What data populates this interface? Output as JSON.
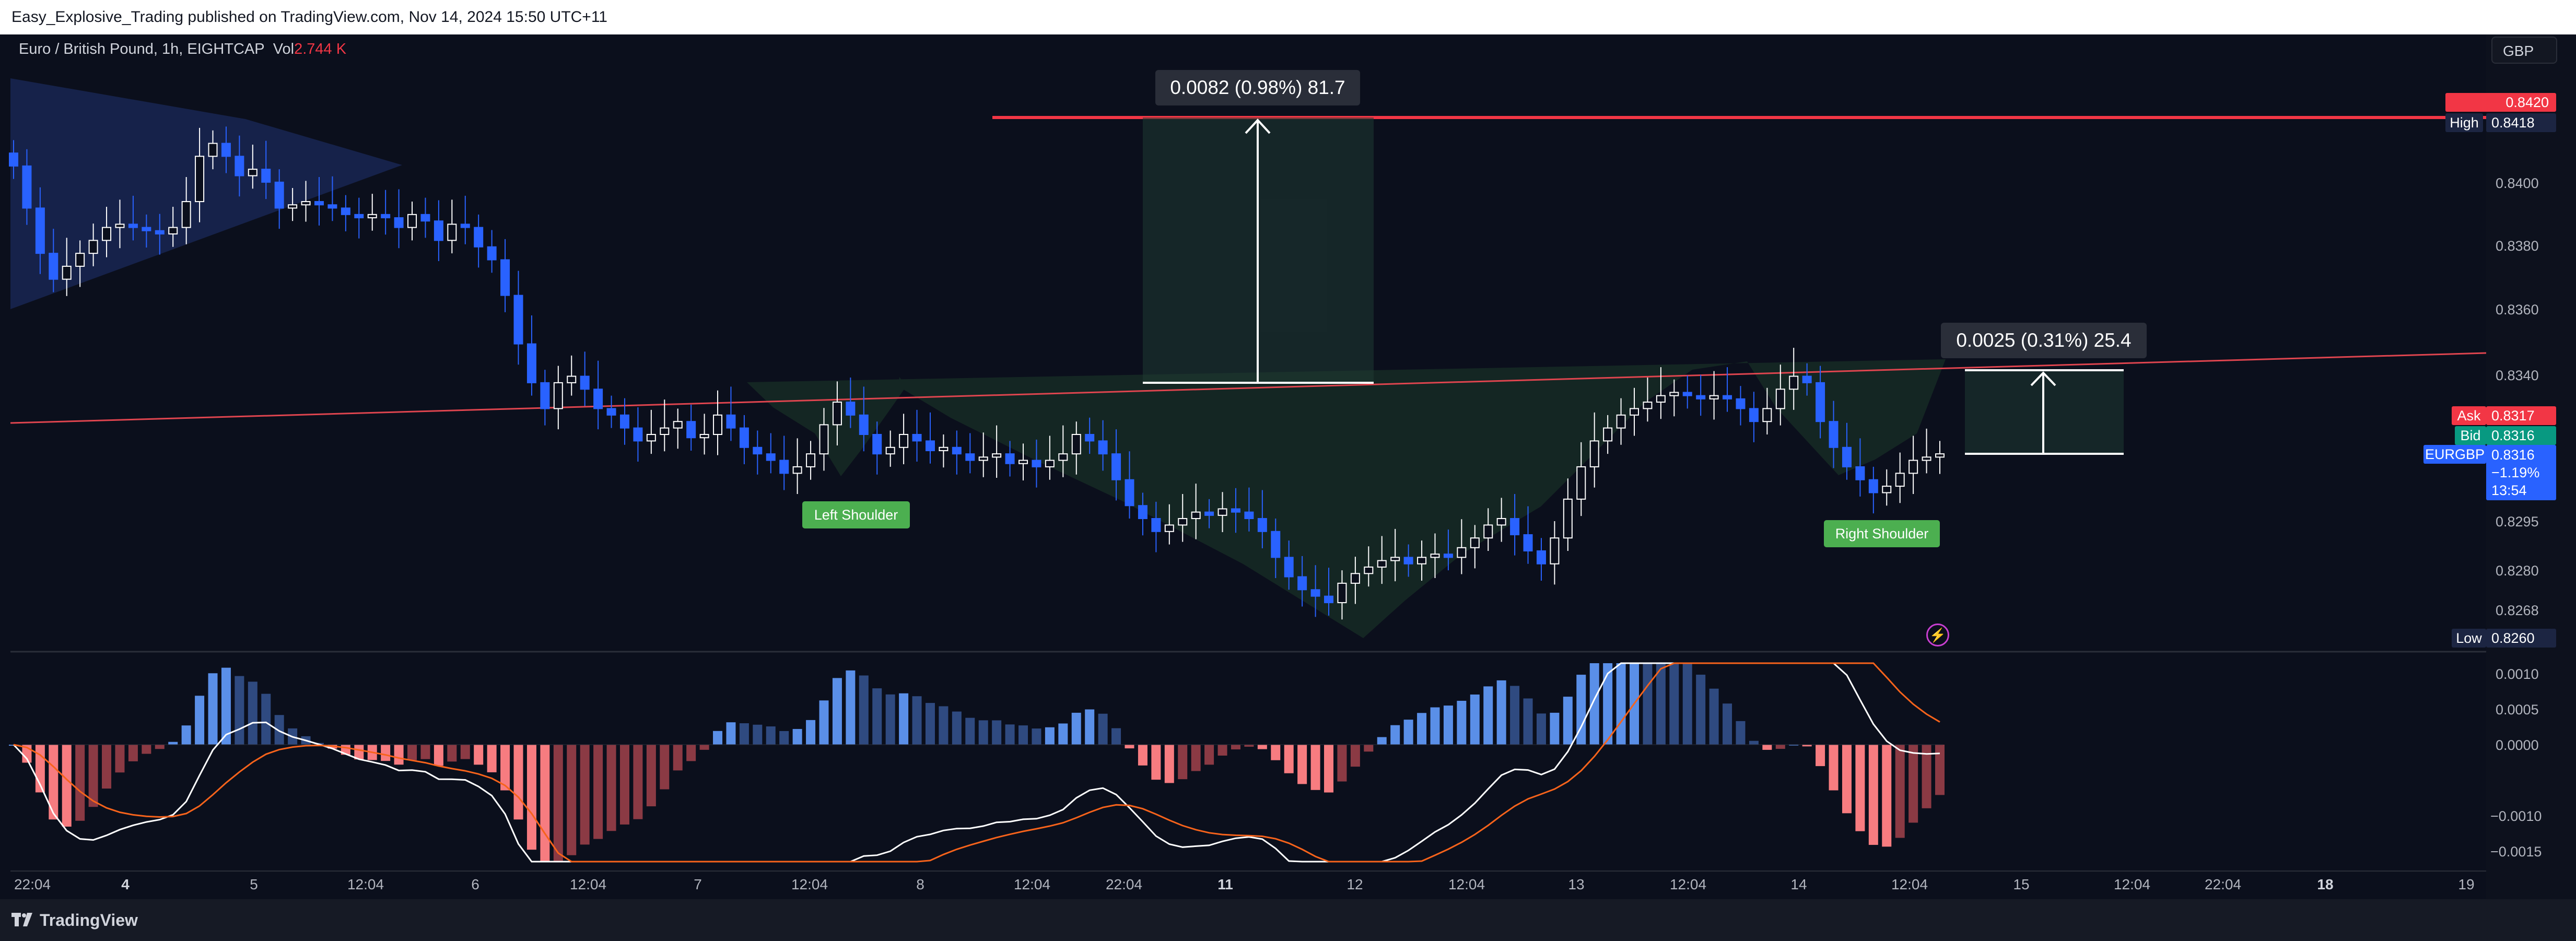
{
  "header": {
    "published": "Easy_Explosive_Trading published on TradingView.com, Nov 14, 2024 15:50 UTC+11"
  },
  "symbol": {
    "name": "Euro / British Pound, 1h, EIGHTCAP",
    "vol_label": "Vol",
    "vol_value": "2.744 K"
  },
  "currency_button": "GBP",
  "footer": {
    "logo_text": "TradingView"
  },
  "colors": {
    "background": "#0b0f1c",
    "bull_candle": "#ffffff",
    "bear_candle": "#2962ff",
    "resistance_line": "#f23645",
    "neckline": "#e0454f",
    "pattern_fill": "#1d3a2a",
    "triangle_fill": "#1b2a5a",
    "macd_line": "#ffffff",
    "signal_line": "#f7631b",
    "hist_pos_strong": "#5a8fe8",
    "hist_neg_strong": "#f77c80"
  },
  "annotations": {
    "measure_top": "0.0082 (0.98%) 81.7",
    "measure_right": "0.0025 (0.31%) 25.4",
    "left_shoulder": "Left Shoulder",
    "right_shoulder": "Right Shoulder"
  },
  "price_axis": {
    "ticks": [
      "0.8400",
      "0.8380",
      "0.8360",
      "0.8340",
      "0.8295",
      "0.8280",
      "0.8268"
    ],
    "high": {
      "label": "High",
      "value": "0.8418"
    },
    "top_red": "0.8420",
    "ask": {
      "label": "Ask",
      "value": "0.8317"
    },
    "bid": {
      "label": "Bid",
      "value": "0.8316"
    },
    "last": {
      "label": "EURGBP",
      "value": "0.8316",
      "change": "−1.19%",
      "countdown": "13:54"
    },
    "low": {
      "label": "Low",
      "value": "0.8260"
    }
  },
  "macd_axis": {
    "ticks": [
      "0.0010",
      "0.0005",
      "0.0000",
      "−0.0010",
      "−0.0015"
    ]
  },
  "time_axis": [
    {
      "label": "22:04",
      "bold": false
    },
    {
      "label": "4",
      "bold": true
    },
    {
      "label": "5",
      "bold": false
    },
    {
      "label": "12:04",
      "bold": false
    },
    {
      "label": "6",
      "bold": false
    },
    {
      "label": "12:04",
      "bold": false
    },
    {
      "label": "7",
      "bold": false
    },
    {
      "label": "12:04",
      "bold": false
    },
    {
      "label": "8",
      "bold": false
    },
    {
      "label": "12:04",
      "bold": false
    },
    {
      "label": "22:04",
      "bold": false
    },
    {
      "label": "11",
      "bold": true
    },
    {
      "label": "12",
      "bold": false
    },
    {
      "label": "12:04",
      "bold": false
    },
    {
      "label": "13",
      "bold": false
    },
    {
      "label": "12:04",
      "bold": false
    },
    {
      "label": "14",
      "bold": false
    },
    {
      "label": "12:04",
      "bold": false
    },
    {
      "label": "15",
      "bold": false
    },
    {
      "label": "12:04",
      "bold": false
    },
    {
      "label": "22:04",
      "bold": false
    },
    {
      "label": "18",
      "bold": true
    },
    {
      "label": "19",
      "bold": false
    }
  ],
  "chart_data": {
    "type": "candlestick",
    "symbol": "EURGBP",
    "interval": "1h",
    "y_range": [
      0.8255,
      0.8425
    ],
    "high_line": 0.842,
    "neckline": {
      "start": 0.8325,
      "end": 0.8346
    },
    "closes": [
      0.8405,
      0.8392,
      0.8378,
      0.837,
      0.8374,
      0.8378,
      0.8382,
      0.8386,
      0.8387,
      0.8386,
      0.8385,
      0.8384,
      0.8386,
      0.8394,
      0.8408,
      0.8412,
      0.8408,
      0.8402,
      0.8404,
      0.84,
      0.8392,
      0.8393,
      0.8394,
      0.8393,
      0.8392,
      0.839,
      0.8389,
      0.839,
      0.8389,
      0.8386,
      0.839,
      0.8388,
      0.8382,
      0.8387,
      0.8386,
      0.838,
      0.8376,
      0.8365,
      0.835,
      0.8338,
      0.833,
      0.8338,
      0.834,
      0.8336,
      0.833,
      0.8328,
      0.8324,
      0.832,
      0.8322,
      0.8324,
      0.8326,
      0.8321,
      0.8322,
      0.8328,
      0.8324,
      0.8318,
      0.8316,
      0.8314,
      0.831,
      0.8312,
      0.8316,
      0.8325,
      0.8332,
      0.8328,
      0.8322,
      0.8316,
      0.8318,
      0.8322,
      0.832,
      0.8317,
      0.8318,
      0.8316,
      0.8314,
      0.8315,
      0.8316,
      0.8313,
      0.8314,
      0.8312,
      0.8314,
      0.8316,
      0.8322,
      0.832,
      0.8316,
      0.8308,
      0.83,
      0.8296,
      0.8292,
      0.8294,
      0.8296,
      0.8298,
      0.8297,
      0.8299,
      0.8298,
      0.8296,
      0.8292,
      0.8284,
      0.8278,
      0.8274,
      0.8272,
      0.827,
      0.8276,
      0.8279,
      0.8281,
      0.8283,
      0.8284,
      0.8282,
      0.8284,
      0.8285,
      0.8284,
      0.8287,
      0.829,
      0.8294,
      0.8296,
      0.8291,
      0.8286,
      0.8282,
      0.829,
      0.8302,
      0.8312,
      0.832,
      0.8324,
      0.8328,
      0.833,
      0.8332,
      0.8334,
      0.8335,
      0.8334,
      0.8333,
      0.8334,
      0.8333,
      0.833,
      0.8326,
      0.833,
      0.8336,
      0.834,
      0.8338,
      0.8326,
      0.8318,
      0.8312,
      0.8308,
      0.8304,
      0.8306,
      0.831,
      0.8314,
      0.8315,
      0.8316
    ],
    "series": [
      {
        "name": "MACD",
        "note": "white line"
      },
      {
        "name": "Signal",
        "note": "orange line"
      },
      {
        "name": "Histogram",
        "note": "bars"
      }
    ],
    "macd_range": [
      -0.0018,
      0.0012
    ],
    "left_shoulder_low": 0.8312,
    "head_low": 0.827,
    "right_shoulder_low": 0.8305,
    "target_move": "0.0025 (0.31%) 25.4",
    "pole_move": "0.0082 (0.98%) 81.7"
  }
}
